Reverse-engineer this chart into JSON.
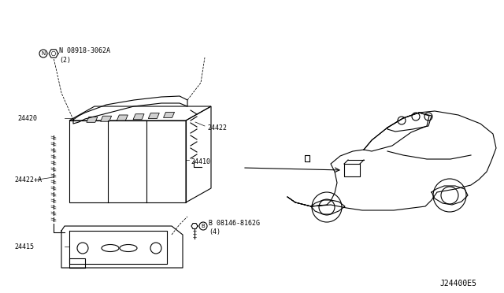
{
  "bg_color": "#ffffff",
  "line_color": "#000000",
  "diagram_code": "J24400E5",
  "parts": {
    "battery_label": "24410",
    "hold_down_label": "24420",
    "clamp_label": "24422",
    "cable_label": "24422+A",
    "tray_label": "24415",
    "bolt1_label1": "N 08918-3062A",
    "bolt1_label2": "(2)",
    "bolt2_label1": "B 08146-8162G",
    "bolt2_label2": "(4)"
  }
}
